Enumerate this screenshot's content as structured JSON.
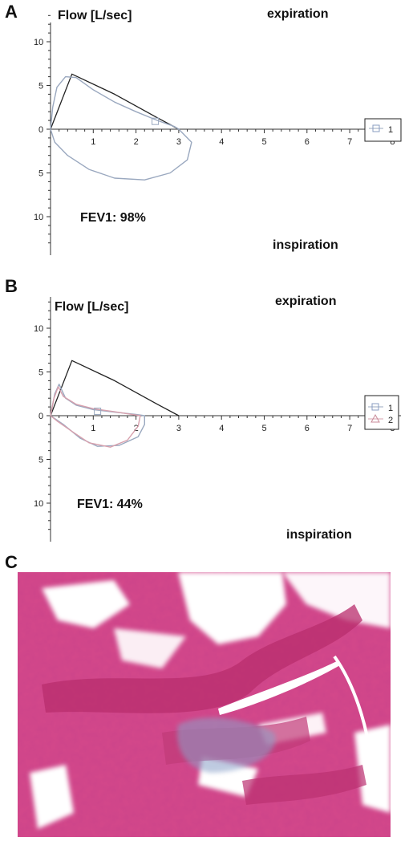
{
  "panels": [
    {
      "letter": "A",
      "ylabel": "Flow [L/sec]",
      "top_label": "expiration",
      "bottom_label": "inspiration",
      "fev1_text": "FEV1: 98%",
      "legend": [
        "1"
      ]
    },
    {
      "letter": "B",
      "ylabel": "Flow [L/sec]",
      "top_label": "expiration",
      "bottom_label": "inspiration",
      "fev1_text": "FEV1: 44%",
      "legend": [
        "1",
        "2"
      ]
    },
    {
      "letter": "C"
    }
  ],
  "colors": {
    "predicted": "#222222",
    "series1": "#9aa8bf",
    "series2": "#d7a0ad",
    "tissue": "#d4488a",
    "collagen": "#8aa0c8"
  },
  "chart_data": [
    {
      "type": "line",
      "panel": "A",
      "xlim": [
        0,
        8
      ],
      "x_ticks": [
        "1",
        "2",
        "3",
        "4",
        "5",
        "6",
        "7",
        "8"
      ],
      "ylim": [
        -13,
        13
      ],
      "y_ticks_expiration": [
        "5",
        "10"
      ],
      "y_ticks_inspiration": [
        "5",
        "10"
      ],
      "zero_label": "0",
      "series": [
        {
          "role": "predicted",
          "points": [
            [
              0,
              0
            ],
            [
              0.5,
              6.3
            ],
            [
              1.5,
              4.0
            ],
            [
              2.5,
              1.3
            ],
            [
              3.0,
              0
            ]
          ]
        },
        {
          "name": "1",
          "points": [
            [
              0,
              0
            ],
            [
              0.05,
              2.5
            ],
            [
              0.15,
              4.8
            ],
            [
              0.35,
              6.0
            ],
            [
              0.6,
              5.9
            ],
            [
              1.0,
              4.5
            ],
            [
              1.5,
              3.1
            ],
            [
              2.0,
              2.0
            ],
            [
              2.5,
              1.0
            ],
            [
              2.9,
              0.3
            ],
            [
              3.0,
              0
            ],
            [
              3.3,
              -1.5
            ],
            [
              3.2,
              -3.5
            ],
            [
              2.8,
              -5.0
            ],
            [
              2.2,
              -5.8
            ],
            [
              1.5,
              -5.6
            ],
            [
              0.9,
              -4.6
            ],
            [
              0.4,
              -3.0
            ],
            [
              0.1,
              -1.5
            ],
            [
              0,
              0
            ]
          ]
        }
      ]
    },
    {
      "type": "line",
      "panel": "B",
      "xlim": [
        0,
        8
      ],
      "x_ticks": [
        "1",
        "2",
        "3",
        "4",
        "5",
        "6",
        "7",
        "8"
      ],
      "ylim": [
        -13,
        13
      ],
      "y_ticks_expiration": [
        "5",
        "10"
      ],
      "y_ticks_inspiration": [
        "5",
        "10"
      ],
      "zero_label": "0",
      "series": [
        {
          "role": "predicted",
          "points": [
            [
              0,
              0
            ],
            [
              0.5,
              6.3
            ],
            [
              1.5,
              4.0
            ],
            [
              2.5,
              1.3
            ],
            [
              3.0,
              0
            ]
          ]
        },
        {
          "name": "1",
          "points": [
            [
              0,
              0
            ],
            [
              0.1,
              2.5
            ],
            [
              0.2,
              3.6
            ],
            [
              0.35,
              2.0
            ],
            [
              0.6,
              1.2
            ],
            [
              1.0,
              0.7
            ],
            [
              1.5,
              0.4
            ],
            [
              2.0,
              0.15
            ],
            [
              2.2,
              0
            ],
            [
              2.2,
              -1.0
            ],
            [
              2.05,
              -2.4
            ],
            [
              1.6,
              -3.4
            ],
            [
              1.1,
              -3.5
            ],
            [
              0.7,
              -2.6
            ],
            [
              0.3,
              -1.0
            ],
            [
              0,
              0
            ]
          ]
        },
        {
          "name": "2",
          "points": [
            [
              0,
              0
            ],
            [
              0.08,
              2.0
            ],
            [
              0.18,
              3.3
            ],
            [
              0.3,
              2.2
            ],
            [
              0.6,
              1.3
            ],
            [
              1.0,
              0.8
            ],
            [
              1.5,
              0.45
            ],
            [
              1.9,
              0.15
            ],
            [
              2.1,
              0
            ],
            [
              2.05,
              -1.2
            ],
            [
              1.8,
              -2.8
            ],
            [
              1.4,
              -3.6
            ],
            [
              0.9,
              -3.1
            ],
            [
              0.5,
              -1.8
            ],
            [
              0.15,
              -0.6
            ],
            [
              0,
              0
            ]
          ]
        }
      ]
    }
  ]
}
